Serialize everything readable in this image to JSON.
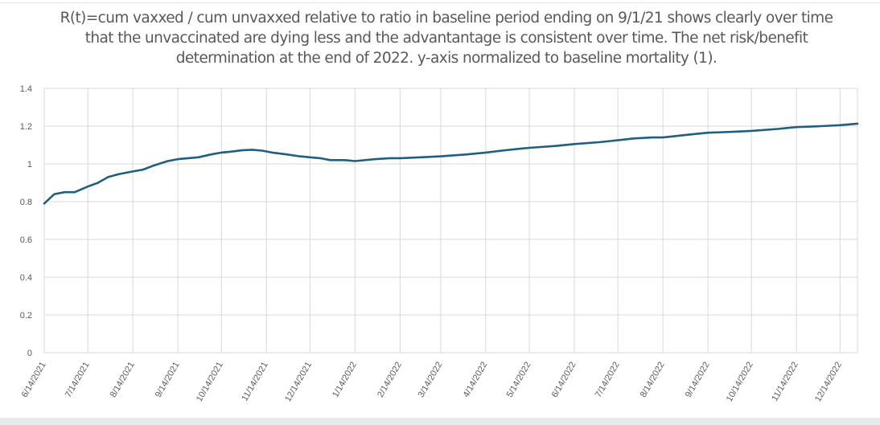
{
  "chart_data": {
    "type": "line",
    "title": "R(t)=cum vaxxed / cum unvaxxed relative to ratio in baseline period ending on 9/1/21 shows clearly over time that the unvaccinated are dying less and the advantantage is consistent over time. The net risk/benefit determination at the end of 2022. y-axis normalized to baseline mortality (1).",
    "xlabel": "",
    "ylabel": "",
    "ylim": [
      0,
      1.4
    ],
    "yticks": [
      "0",
      "0.2",
      "0.4",
      "0.6",
      "0.8",
      "1",
      "1.2",
      "1.4"
    ],
    "xticks": [
      "6/14/2021",
      "7/14/2021",
      "8/14/2021",
      "9/14/2021",
      "10/14/2021",
      "11/14/2021",
      "12/14/2021",
      "1/14/2022",
      "2/14/2022",
      "3/14/2022",
      "4/14/2022",
      "5/14/2022",
      "6/14/2022",
      "7/14/2022",
      "8/14/2022",
      "9/14/2022",
      "10/14/2022",
      "11/14/2022",
      "12/14/2022"
    ],
    "grid": true,
    "line_color": "#1f5f7f",
    "series": [
      {
        "x": [
          "2021-06-14",
          "2021-06-21",
          "2021-06-28",
          "2021-07-05",
          "2021-07-14",
          "2021-07-21",
          "2021-07-28",
          "2021-08-04",
          "2021-08-14",
          "2021-08-21",
          "2021-08-28",
          "2021-09-07",
          "2021-09-14",
          "2021-09-28",
          "2021-10-07",
          "2021-10-14",
          "2021-10-21",
          "2021-10-28",
          "2021-11-04",
          "2021-11-11",
          "2021-11-18",
          "2021-11-28",
          "2021-12-07",
          "2021-12-14",
          "2021-12-21",
          "2021-12-28",
          "2022-01-07",
          "2022-01-14",
          "2022-01-28",
          "2022-02-07",
          "2022-02-14",
          "2022-02-28",
          "2022-03-14",
          "2022-04-01",
          "2022-04-14",
          "2022-04-25",
          "2022-05-07",
          "2022-05-14",
          "2022-06-01",
          "2022-06-14",
          "2022-07-01",
          "2022-07-14",
          "2022-07-25",
          "2022-08-07",
          "2022-08-14",
          "2022-09-01",
          "2022-09-14",
          "2022-10-01",
          "2022-10-14",
          "2022-11-01",
          "2022-11-14",
          "2022-12-01",
          "2022-12-14",
          "2022-12-26"
        ],
        "y": [
          0.79,
          0.84,
          0.85,
          0.85,
          0.88,
          0.9,
          0.93,
          0.945,
          0.96,
          0.97,
          0.99,
          1.015,
          1.025,
          1.035,
          1.05,
          1.06,
          1.065,
          1.072,
          1.075,
          1.07,
          1.06,
          1.05,
          1.04,
          1.035,
          1.03,
          1.02,
          1.02,
          1.015,
          1.025,
          1.03,
          1.03,
          1.035,
          1.04,
          1.05,
          1.06,
          1.07,
          1.08,
          1.085,
          1.095,
          1.105,
          1.115,
          1.125,
          1.135,
          1.14,
          1.14,
          1.155,
          1.165,
          1.17,
          1.175,
          1.185,
          1.195,
          1.2,
          1.205,
          1.213
        ]
      }
    ]
  }
}
